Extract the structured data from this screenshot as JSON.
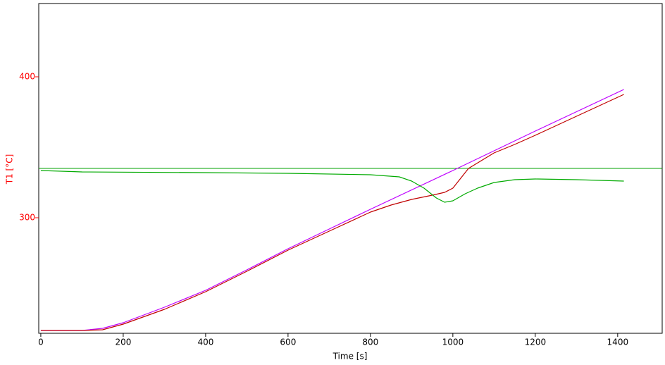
{
  "chart_data": {
    "type": "line",
    "xlabel": "Time [s]",
    "ylabel": "T1  [°C]",
    "xlim": [
      -5,
      1508
    ],
    "ylim": [
      218,
      452
    ],
    "xticks": [
      0,
      200,
      400,
      600,
      800,
      1000,
      1200,
      1400
    ],
    "yticks": [
      300,
      400
    ],
    "grid": false,
    "axis_color": "#ff0000",
    "hline": {
      "value": 335,
      "color": "#00a000"
    },
    "series": [
      {
        "color": "#bf00ff",
        "x": [
          0,
          100,
          150,
          200,
          300,
          400,
          500,
          600,
          700,
          800,
          1000,
          1200,
          1415
        ],
        "values": [
          220,
          220,
          221.5,
          225.5,
          236.5,
          248.5,
          263,
          278,
          292,
          306,
          333.5,
          361.5,
          391
        ]
      },
      {
        "color": "#c00000",
        "x": [
          0,
          100,
          150,
          200,
          300,
          400,
          500,
          600,
          700,
          800,
          850,
          900,
          950,
          980,
          1000,
          1038,
          1100,
          1150,
          1200,
          1300,
          1415
        ],
        "values": [
          220,
          220,
          220.5,
          224.5,
          235,
          247.5,
          262,
          277,
          290.5,
          304,
          309,
          313,
          316,
          318,
          321,
          335,
          346,
          352,
          358.5,
          372,
          387.5
        ]
      },
      {
        "color": "#00aa00",
        "x": [
          0,
          50,
          100,
          400,
          600,
          800,
          870,
          900,
          930,
          960,
          980,
          1000,
          1030,
          1060,
          1100,
          1150,
          1200,
          1300,
          1415
        ],
        "values": [
          333.5,
          333,
          332.5,
          332,
          331.5,
          330.5,
          329,
          326,
          321,
          314,
          311,
          312,
          317,
          321,
          325,
          327,
          327.5,
          327,
          326
        ]
      }
    ]
  }
}
